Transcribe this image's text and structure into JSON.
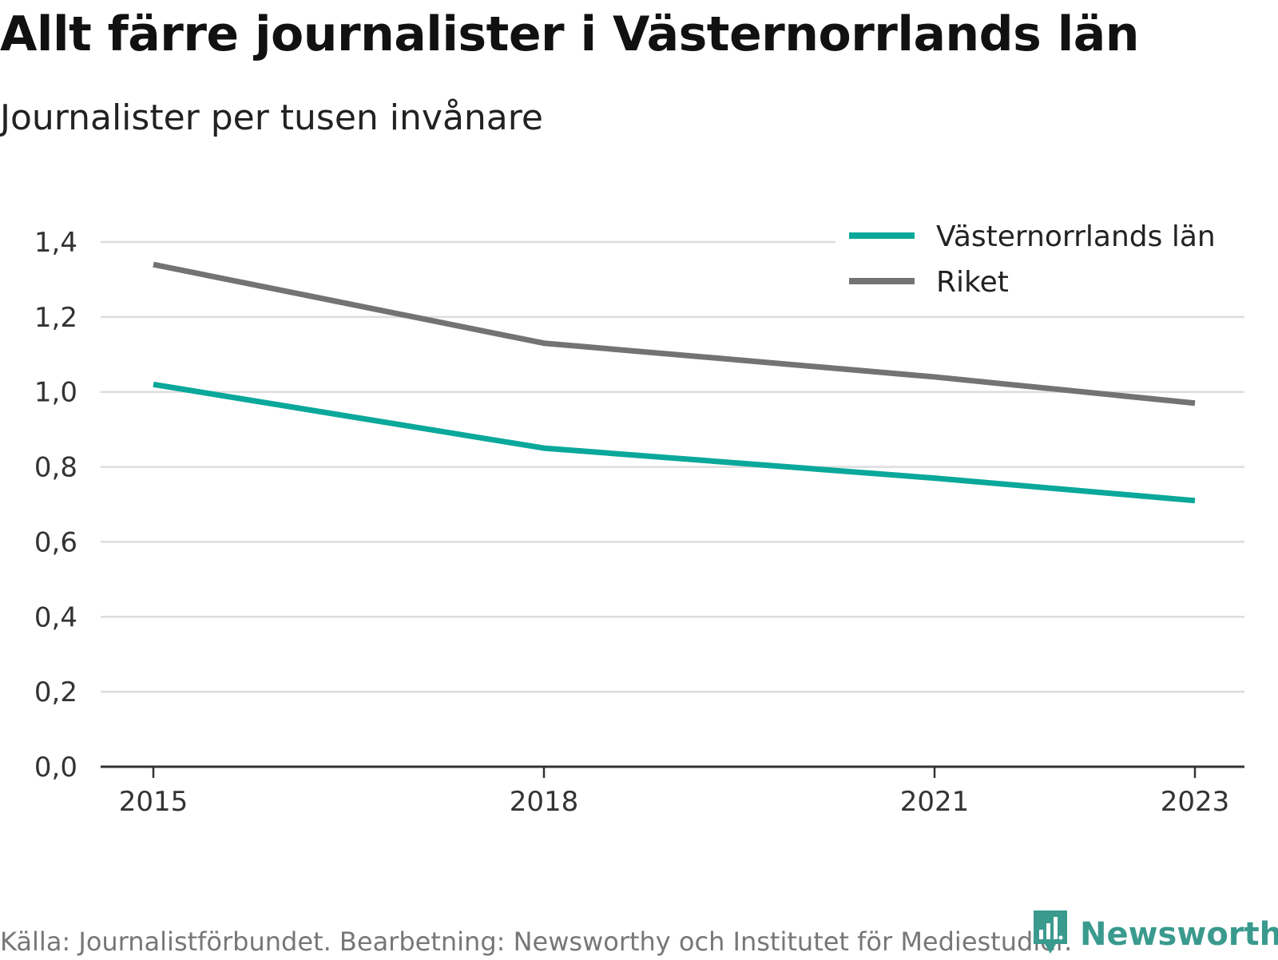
{
  "header": {
    "title": "Allt färre journalister i Västernorrlands län",
    "subtitle": "Journalister per tusen invånare"
  },
  "footer": {
    "source": "Källa: Journalistförbundet. Bearbetning: Newsworthy och Institutet för Mediestudier.",
    "brand": "Newsworthy",
    "brand_icon": "newsworthy-logo-icon"
  },
  "colors": {
    "vasternorrland": "#0aa89a",
    "riket": "#737373",
    "grid": "#dddddd",
    "axis": "#333333",
    "brand": "#3a9a8e"
  },
  "chart_data": {
    "type": "line",
    "title": "Allt färre journalister i Västernorrlands län",
    "subtitle": "Journalister per tusen invånare",
    "x": [
      2015,
      2018,
      2021,
      2023
    ],
    "xticks": [
      "2015",
      "2018",
      "2021",
      "2023"
    ],
    "yticks": [
      "0,0",
      "0,2",
      "0,4",
      "0,6",
      "0,8",
      "1,0",
      "1,2",
      "1,4"
    ],
    "ylim": [
      0,
      1.4
    ],
    "grid": true,
    "legend_position": "top-right",
    "series": [
      {
        "name": "Västernorrlands län",
        "values": [
          1.02,
          0.85,
          0.77,
          0.71
        ]
      },
      {
        "name": "Riket",
        "values": [
          1.34,
          1.13,
          1.04,
          0.97
        ]
      }
    ]
  }
}
